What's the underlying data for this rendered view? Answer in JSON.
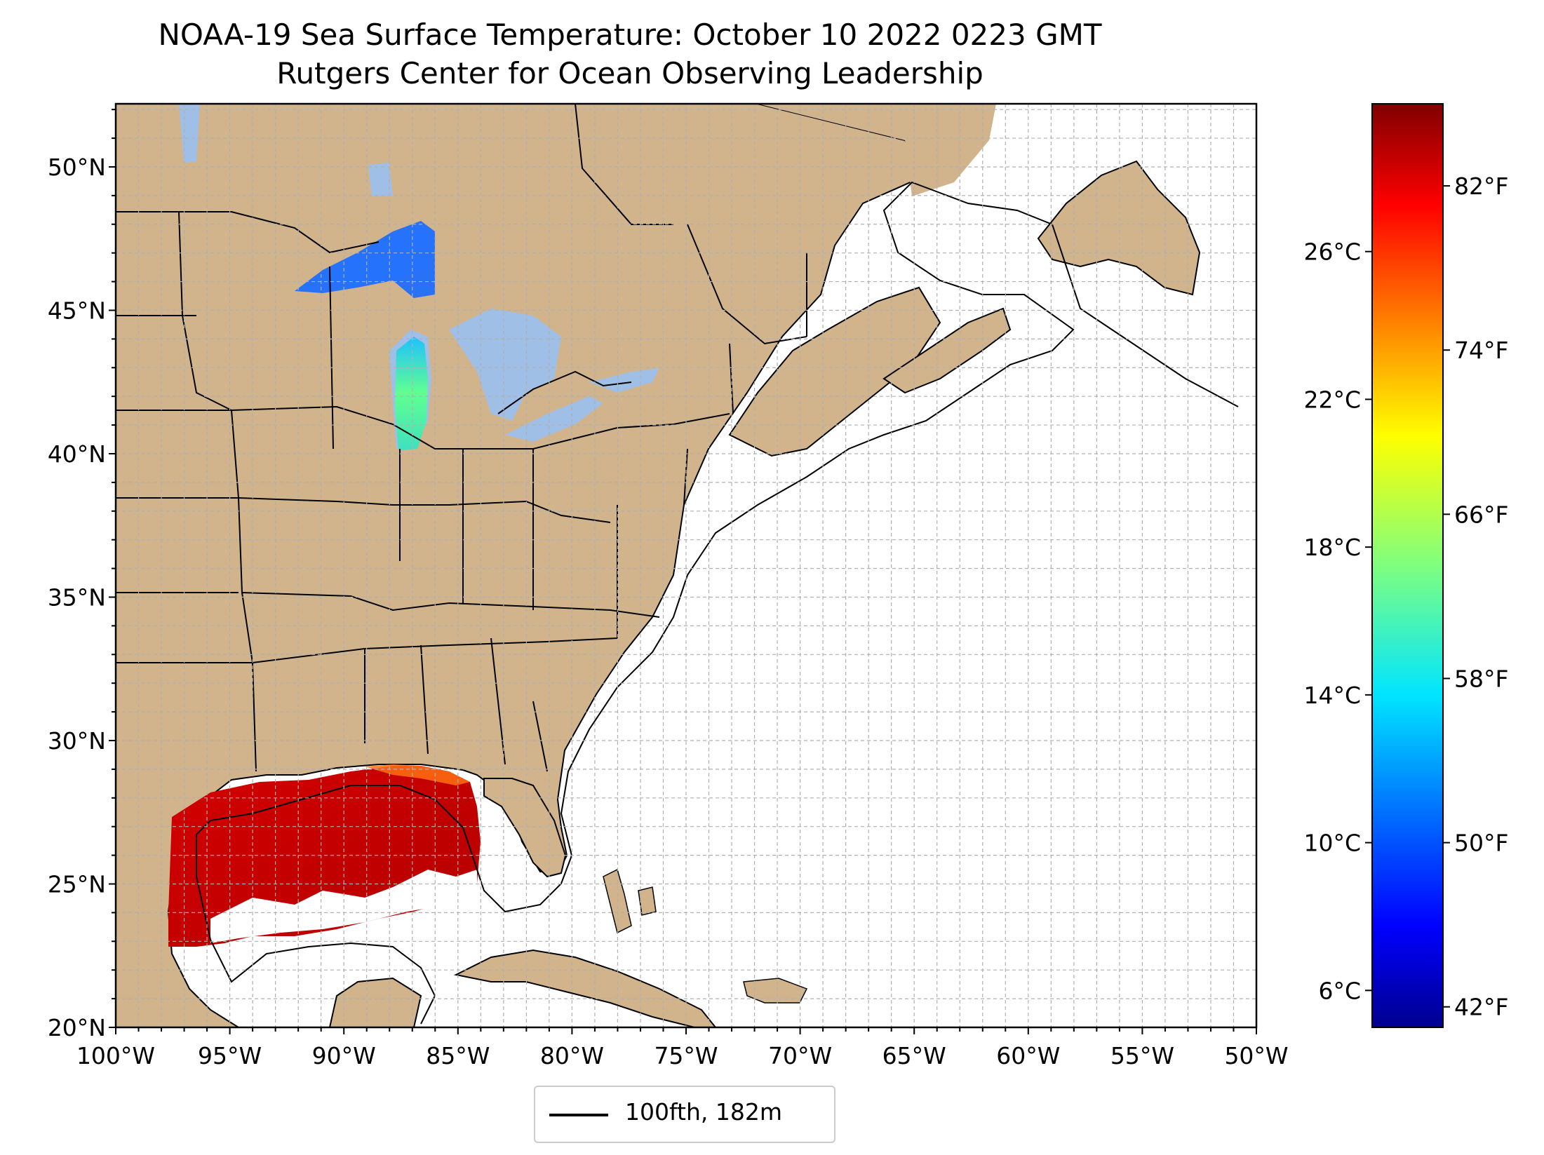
{
  "map": {
    "title": "NOAA-19 Sea Surface Temperature: October 10 2022 0223 GMT",
    "subtitle": "Rutgers Center for Ocean Observing Leadership",
    "extent": {
      "lon": [
        -100,
        -50
      ],
      "lat": [
        20,
        52.2
      ]
    },
    "lon_ticks": [
      {
        "value": -100,
        "label": "100°W"
      },
      {
        "value": -95,
        "label": "95°W"
      },
      {
        "value": -90,
        "label": "90°W"
      },
      {
        "value": -85,
        "label": "85°W"
      },
      {
        "value": -80,
        "label": "80°W"
      },
      {
        "value": -75,
        "label": "75°W"
      },
      {
        "value": -70,
        "label": "70°W"
      },
      {
        "value": -65,
        "label": "65°W"
      },
      {
        "value": -60,
        "label": "60°W"
      },
      {
        "value": -55,
        "label": "55°W"
      },
      {
        "value": -50,
        "label": "50°W"
      }
    ],
    "lat_ticks": [
      {
        "value": 20,
        "label": "20°N"
      },
      {
        "value": 25,
        "label": "25°N"
      },
      {
        "value": 30,
        "label": "30°N"
      },
      {
        "value": 35,
        "label": "35°N"
      },
      {
        "value": 40,
        "label": "40°N"
      },
      {
        "value": 45,
        "label": "45°N"
      },
      {
        "value": 50,
        "label": "50°N"
      }
    ],
    "gridline_interval_deg": 1,
    "colors": {
      "land": "#d2b48c",
      "lakes": "#a0bfe6",
      "ocean": "#ffffff",
      "grid": "#b0b0b0",
      "border": "#000000"
    },
    "legend": {
      "label": "100fth, 182m"
    }
  },
  "colorbar": {
    "colormap": "jet",
    "range_c": [
      5,
      30
    ],
    "celsius_ticks": [
      {
        "value": 6,
        "label": "6°C"
      },
      {
        "value": 10,
        "label": "10°C"
      },
      {
        "value": 14,
        "label": "14°C"
      },
      {
        "value": 18,
        "label": "18°C"
      },
      {
        "value": 22,
        "label": "22°C"
      },
      {
        "value": 26,
        "label": "26°C"
      }
    ],
    "fahrenheit_ticks": [
      {
        "value": 42,
        "label": "42°F"
      },
      {
        "value": 50,
        "label": "50°F"
      },
      {
        "value": 58,
        "label": "58°F"
      },
      {
        "value": 66,
        "label": "66°F"
      },
      {
        "value": 74,
        "label": "74°F"
      },
      {
        "value": 82,
        "label": "82°F"
      }
    ]
  }
}
